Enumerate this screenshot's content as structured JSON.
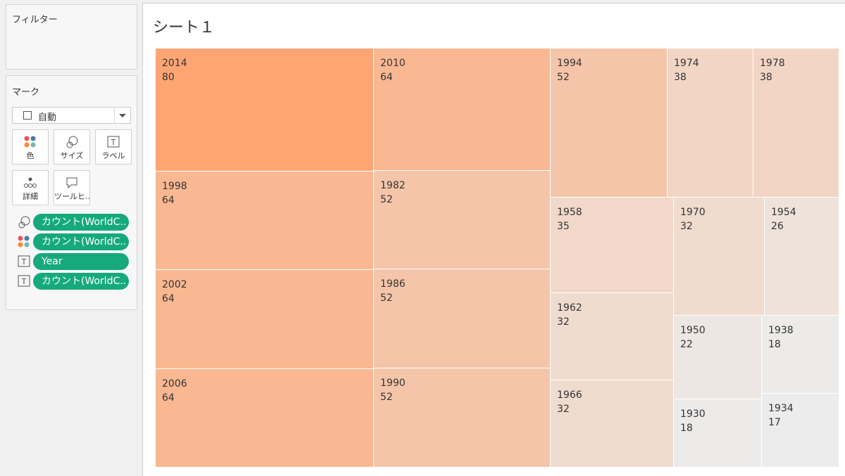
{
  "sidebar": {
    "filters_title": "フィルター",
    "marks": {
      "title": "マーク",
      "mark_type": "自動",
      "buttons": [
        "色",
        "サイズ",
        "ラベル",
        "詳細",
        "ツールヒ…"
      ],
      "pills": [
        "カウント(WorldC..",
        "カウント(WorldC..",
        "Year",
        "カウント(WorldC.."
      ]
    }
  },
  "chart_data": {
    "type": "treemap",
    "title": "シート１",
    "categories": [
      "2014",
      "2010",
      "1998",
      "2002",
      "2006",
      "1982",
      "1986",
      "1990",
      "1994",
      "1974",
      "1978",
      "1958",
      "1962",
      "1966",
      "1970",
      "1954",
      "1950",
      "1930",
      "1938",
      "1934"
    ],
    "values": [
      80,
      64,
      64,
      64,
      64,
      52,
      52,
      52,
      52,
      38,
      38,
      35,
      32,
      32,
      32,
      26,
      22,
      18,
      18,
      17
    ],
    "color_range": [
      "#ececec",
      "#fda673"
    ]
  }
}
